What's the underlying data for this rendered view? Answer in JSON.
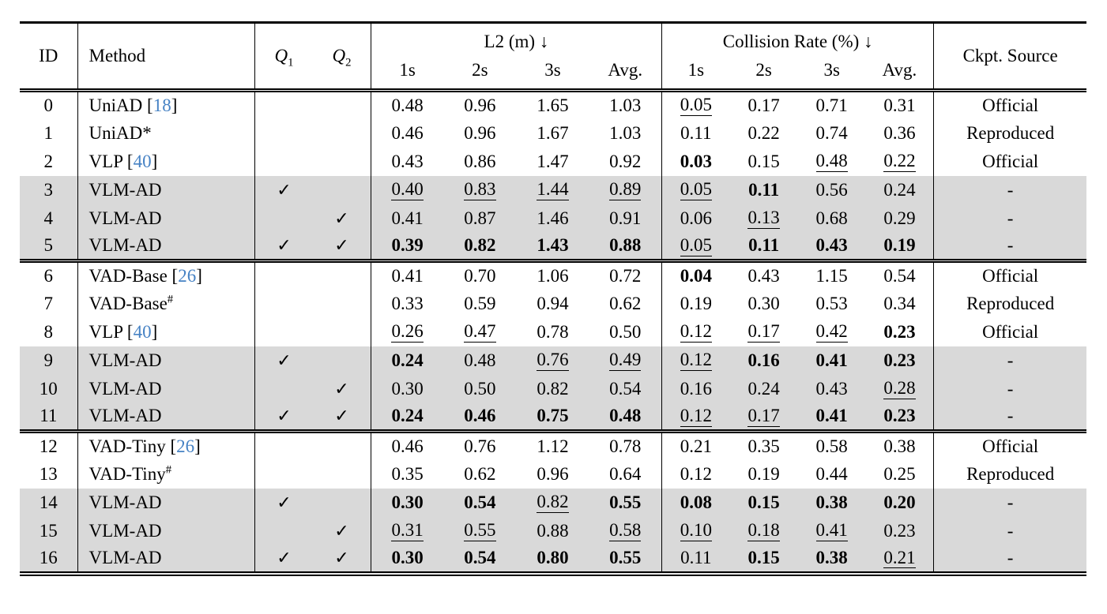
{
  "colors": {
    "citation_blue": "#4682c4",
    "highlight_gray": "#d9d9d9",
    "text": "#000000"
  },
  "table": {
    "checkmark": "✓",
    "dash": "-",
    "header": {
      "id": "ID",
      "method": "Method",
      "q_letter": "Q",
      "q1_sub": "1",
      "q2_sub": "2",
      "l2_group": "L2 (m) ↓",
      "collision_group": "Collision Rate (%) ↓",
      "sub_cols": [
        "1s",
        "2s",
        "3s",
        "Avg."
      ],
      "ckpt": "Ckpt. Source"
    },
    "groups": [
      {
        "rows": [
          {
            "id": "0",
            "method": "UniAD",
            "cite": "18",
            "sup": "",
            "q1": false,
            "q2": false,
            "l2": [
              [
                "0.48",
                ""
              ],
              [
                "0.96",
                ""
              ],
              [
                "1.65",
                ""
              ],
              [
                "1.03",
                ""
              ]
            ],
            "cr": [
              [
                "0.05",
                "u"
              ],
              [
                "0.17",
                ""
              ],
              [
                "0.71",
                ""
              ],
              [
                "0.31",
                ""
              ]
            ],
            "ckpt": "Official",
            "highlight": false
          },
          {
            "id": "1",
            "method": "UniAD*",
            "cite": "",
            "sup": "",
            "q1": false,
            "q2": false,
            "l2": [
              [
                "0.46",
                ""
              ],
              [
                "0.96",
                ""
              ],
              [
                "1.67",
                ""
              ],
              [
                "1.03",
                ""
              ]
            ],
            "cr": [
              [
                "0.11",
                ""
              ],
              [
                "0.22",
                ""
              ],
              [
                "0.74",
                ""
              ],
              [
                "0.36",
                ""
              ]
            ],
            "ckpt": "Reproduced",
            "highlight": false
          },
          {
            "id": "2",
            "method": "VLP",
            "cite": "40",
            "sup": "",
            "q1": false,
            "q2": false,
            "l2": [
              [
                "0.43",
                ""
              ],
              [
                "0.86",
                ""
              ],
              [
                "1.47",
                ""
              ],
              [
                "0.92",
                ""
              ]
            ],
            "cr": [
              [
                "0.03",
                "b"
              ],
              [
                "0.15",
                ""
              ],
              [
                "0.48",
                "u"
              ],
              [
                "0.22",
                "u"
              ]
            ],
            "ckpt": "Official",
            "highlight": false
          },
          {
            "id": "3",
            "method": "VLM-AD",
            "cite": "",
            "sup": "",
            "q1": true,
            "q2": false,
            "l2": [
              [
                "0.40",
                "u"
              ],
              [
                "0.83",
                "u"
              ],
              [
                "1.44",
                "u"
              ],
              [
                "0.89",
                "u"
              ]
            ],
            "cr": [
              [
                "0.05",
                "u"
              ],
              [
                "0.11",
                "b"
              ],
              [
                "0.56",
                ""
              ],
              [
                "0.24",
                ""
              ]
            ],
            "ckpt": "-",
            "highlight": true
          },
          {
            "id": "4",
            "method": "VLM-AD",
            "cite": "",
            "sup": "",
            "q1": false,
            "q2": true,
            "l2": [
              [
                "0.41",
                ""
              ],
              [
                "0.87",
                ""
              ],
              [
                "1.46",
                ""
              ],
              [
                "0.91",
                ""
              ]
            ],
            "cr": [
              [
                "0.06",
                ""
              ],
              [
                "0.13",
                "u"
              ],
              [
                "0.68",
                ""
              ],
              [
                "0.29",
                ""
              ]
            ],
            "ckpt": "-",
            "highlight": true
          },
          {
            "id": "5",
            "method": "VLM-AD",
            "cite": "",
            "sup": "",
            "q1": true,
            "q2": true,
            "l2": [
              [
                "0.39",
                "b"
              ],
              [
                "0.82",
                "b"
              ],
              [
                "1.43",
                "b"
              ],
              [
                "0.88",
                "b"
              ]
            ],
            "cr": [
              [
                "0.05",
                "u"
              ],
              [
                "0.11",
                "b"
              ],
              [
                "0.43",
                "b"
              ],
              [
                "0.19",
                "b"
              ]
            ],
            "ckpt": "-",
            "highlight": true
          }
        ]
      },
      {
        "rows": [
          {
            "id": "6",
            "method": "VAD-Base",
            "cite": "26",
            "sup": "",
            "q1": false,
            "q2": false,
            "l2": [
              [
                "0.41",
                ""
              ],
              [
                "0.70",
                ""
              ],
              [
                "1.06",
                ""
              ],
              [
                "0.72",
                ""
              ]
            ],
            "cr": [
              [
                "0.04",
                "b"
              ],
              [
                "0.43",
                ""
              ],
              [
                "1.15",
                ""
              ],
              [
                "0.54",
                ""
              ]
            ],
            "ckpt": "Official",
            "highlight": false
          },
          {
            "id": "7",
            "method": "VAD-Base",
            "cite": "",
            "sup": "#",
            "q1": false,
            "q2": false,
            "l2": [
              [
                "0.33",
                ""
              ],
              [
                "0.59",
                ""
              ],
              [
                "0.94",
                ""
              ],
              [
                "0.62",
                ""
              ]
            ],
            "cr": [
              [
                "0.19",
                ""
              ],
              [
                "0.30",
                ""
              ],
              [
                "0.53",
                ""
              ],
              [
                "0.34",
                ""
              ]
            ],
            "ckpt": "Reproduced",
            "highlight": false
          },
          {
            "id": "8",
            "method": "VLP",
            "cite": "40",
            "sup": "",
            "q1": false,
            "q2": false,
            "l2": [
              [
                "0.26",
                "u"
              ],
              [
                "0.47",
                "u"
              ],
              [
                "0.78",
                ""
              ],
              [
                "0.50",
                ""
              ]
            ],
            "cr": [
              [
                "0.12",
                "u"
              ],
              [
                "0.17",
                "u"
              ],
              [
                "0.42",
                "u"
              ],
              [
                "0.23",
                "b"
              ]
            ],
            "ckpt": "Official",
            "highlight": false
          },
          {
            "id": "9",
            "method": "VLM-AD",
            "cite": "",
            "sup": "",
            "q1": true,
            "q2": false,
            "l2": [
              [
                "0.24",
                "b"
              ],
              [
                "0.48",
                ""
              ],
              [
                "0.76",
                "u"
              ],
              [
                "0.49",
                "u"
              ]
            ],
            "cr": [
              [
                "0.12",
                "u"
              ],
              [
                "0.16",
                "b"
              ],
              [
                "0.41",
                "b"
              ],
              [
                "0.23",
                "b"
              ]
            ],
            "ckpt": "-",
            "highlight": true
          },
          {
            "id": "10",
            "method": "VLM-AD",
            "cite": "",
            "sup": "",
            "q1": false,
            "q2": true,
            "l2": [
              [
                "0.30",
                ""
              ],
              [
                "0.50",
                ""
              ],
              [
                "0.82",
                ""
              ],
              [
                "0.54",
                ""
              ]
            ],
            "cr": [
              [
                "0.16",
                ""
              ],
              [
                "0.24",
                ""
              ],
              [
                "0.43",
                ""
              ],
              [
                "0.28",
                "u"
              ]
            ],
            "ckpt": "-",
            "highlight": true
          },
          {
            "id": "11",
            "method": "VLM-AD",
            "cite": "",
            "sup": "",
            "q1": true,
            "q2": true,
            "l2": [
              [
                "0.24",
                "b"
              ],
              [
                "0.46",
                "b"
              ],
              [
                "0.75",
                "b"
              ],
              [
                "0.48",
                "b"
              ]
            ],
            "cr": [
              [
                "0.12",
                "u"
              ],
              [
                "0.17",
                "u"
              ],
              [
                "0.41",
                "b"
              ],
              [
                "0.23",
                "b"
              ]
            ],
            "ckpt": "-",
            "highlight": true
          }
        ]
      },
      {
        "rows": [
          {
            "id": "12",
            "method": "VAD-Tiny",
            "cite": "26",
            "sup": "",
            "q1": false,
            "q2": false,
            "l2": [
              [
                "0.46",
                ""
              ],
              [
                "0.76",
                ""
              ],
              [
                "1.12",
                ""
              ],
              [
                "0.78",
                ""
              ]
            ],
            "cr": [
              [
                "0.21",
                ""
              ],
              [
                "0.35",
                ""
              ],
              [
                "0.58",
                ""
              ],
              [
                "0.38",
                ""
              ]
            ],
            "ckpt": "Official",
            "highlight": false
          },
          {
            "id": "13",
            "method": "VAD-Tiny",
            "cite": "",
            "sup": "#",
            "q1": false,
            "q2": false,
            "l2": [
              [
                "0.35",
                ""
              ],
              [
                "0.62",
                ""
              ],
              [
                "0.96",
                ""
              ],
              [
                "0.64",
                ""
              ]
            ],
            "cr": [
              [
                "0.12",
                ""
              ],
              [
                "0.19",
                ""
              ],
              [
                "0.44",
                ""
              ],
              [
                "0.25",
                ""
              ]
            ],
            "ckpt": "Reproduced",
            "highlight": false
          },
          {
            "id": "14",
            "method": "VLM-AD",
            "cite": "",
            "sup": "",
            "q1": true,
            "q2": false,
            "l2": [
              [
                "0.30",
                "b"
              ],
              [
                "0.54",
                "b"
              ],
              [
                "0.82",
                "u"
              ],
              [
                "0.55",
                "b"
              ]
            ],
            "cr": [
              [
                "0.08",
                "b"
              ],
              [
                "0.15",
                "b"
              ],
              [
                "0.38",
                "b"
              ],
              [
                "0.20",
                "b"
              ]
            ],
            "ckpt": "-",
            "highlight": true
          },
          {
            "id": "15",
            "method": "VLM-AD",
            "cite": "",
            "sup": "",
            "q1": false,
            "q2": true,
            "l2": [
              [
                "0.31",
                "u"
              ],
              [
                "0.55",
                "u"
              ],
              [
                "0.88",
                ""
              ],
              [
                "0.58",
                "u"
              ]
            ],
            "cr": [
              [
                "0.10",
                "u"
              ],
              [
                "0.18",
                "u"
              ],
              [
                "0.41",
                "u"
              ],
              [
                "0.23",
                ""
              ]
            ],
            "ckpt": "-",
            "highlight": true
          },
          {
            "id": "16",
            "method": "VLM-AD",
            "cite": "",
            "sup": "",
            "q1": true,
            "q2": true,
            "l2": [
              [
                "0.30",
                "b"
              ],
              [
                "0.54",
                "b"
              ],
              [
                "0.80",
                "b"
              ],
              [
                "0.55",
                "b"
              ]
            ],
            "cr": [
              [
                "0.11",
                ""
              ],
              [
                "0.15",
                "b"
              ],
              [
                "0.38",
                "b"
              ],
              [
                "0.21",
                "u"
              ]
            ],
            "ckpt": "-",
            "highlight": true
          }
        ]
      }
    ]
  }
}
